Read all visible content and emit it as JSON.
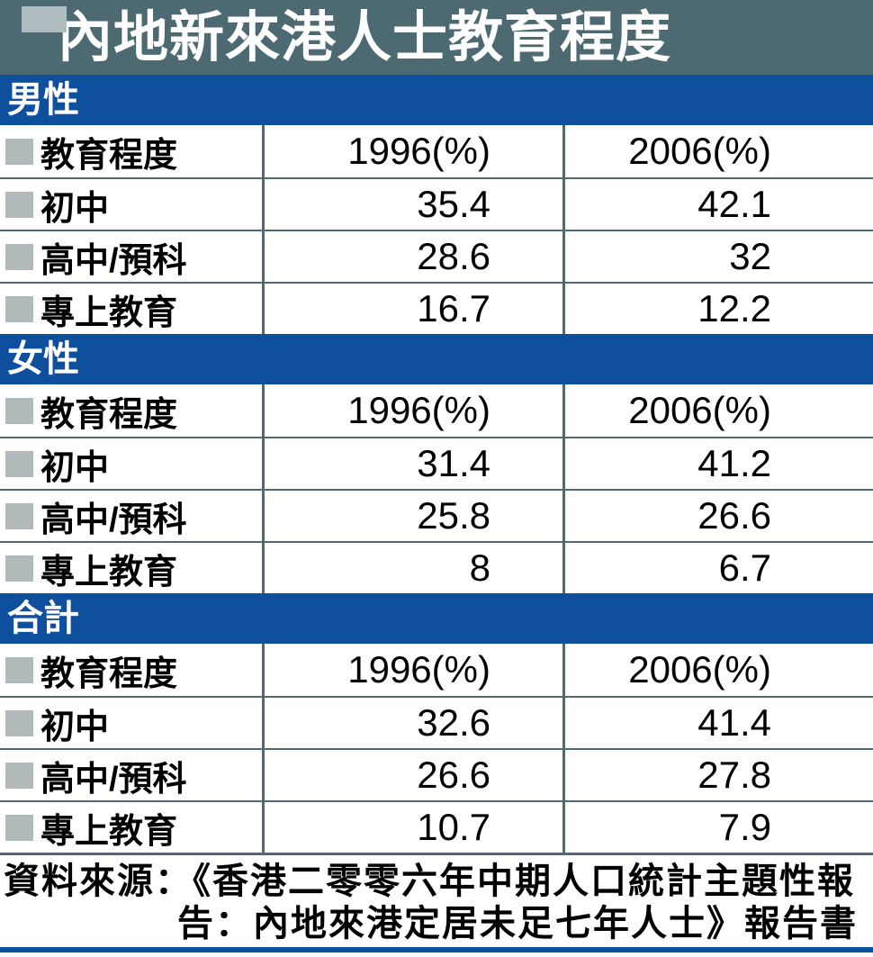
{
  "title": "內地新來港人士教育程度",
  "columns": [
    "教育程度",
    "1996(%)",
    "2006(%)"
  ],
  "sections": [
    {
      "label": "男性",
      "rows": [
        [
          "初中",
          "35.4",
          "42.1"
        ],
        [
          "高中/預科",
          "28.6",
          "32"
        ],
        [
          "專上教育",
          "16.7",
          "12.2"
        ]
      ]
    },
    {
      "label": "女性",
      "rows": [
        [
          "初中",
          "31.4",
          "41.2"
        ],
        [
          "高中/預科",
          "25.8",
          "26.6"
        ],
        [
          "專上教育",
          "8",
          "6.7"
        ]
      ]
    },
    {
      "label": "合計",
      "rows": [
        [
          "初中",
          "32.6",
          "41.4"
        ],
        [
          "高中/預科",
          "26.6",
          "27.8"
        ],
        [
          "專上教育",
          "10.7",
          "7.9"
        ]
      ]
    }
  ],
  "source_line1": "資料來源：《香港二零零六年中期人口統計主題性報",
  "source_line2": "告：內地來港定居未足七年人士》報告書",
  "colors": {
    "header_slate": "#4d6a72",
    "section_blue": "#0e4f9e",
    "marker_gray": "#b0bdc0",
    "bullet_gray": "#b2b9bb"
  },
  "chart_data": {
    "type": "table",
    "title": "內地新來港人士教育程度",
    "columns": [
      "教育程度",
      "1996(%)",
      "2006(%)"
    ],
    "groups": [
      {
        "name": "男性",
        "rows": [
          {
            "category": "初中",
            "y1996": 35.4,
            "y2006": 42.1
          },
          {
            "category": "高中/預科",
            "y1996": 28.6,
            "y2006": 32
          },
          {
            "category": "專上教育",
            "y1996": 16.7,
            "y2006": 12.2
          }
        ]
      },
      {
        "name": "女性",
        "rows": [
          {
            "category": "初中",
            "y1996": 31.4,
            "y2006": 41.2
          },
          {
            "category": "高中/預科",
            "y1996": 25.8,
            "y2006": 26.6
          },
          {
            "category": "專上教育",
            "y1996": 8,
            "y2006": 6.7
          }
        ]
      },
      {
        "name": "合計",
        "rows": [
          {
            "category": "初中",
            "y1996": 32.6,
            "y2006": 41.4
          },
          {
            "category": "高中/預科",
            "y1996": 26.6,
            "y2006": 27.8
          },
          {
            "category": "專上教育",
            "y1996": 10.7,
            "y2006": 7.9
          }
        ]
      }
    ],
    "source": "資料來源：《香港二零零六年中期人口統計主題性報告：內地來港定居未足七年人士》報告書"
  }
}
